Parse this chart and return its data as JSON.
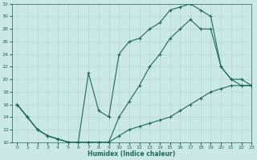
{
  "bg_color": "#cce8e4",
  "grid_color": "#b0d8d0",
  "line_color": "#1a6b5a",
  "xlabel": "Humidex (Indice chaleur)",
  "xlim": [
    -0.5,
    23
  ],
  "ylim": [
    10,
    32
  ],
  "line1_x": [
    0,
    1,
    2,
    3,
    4,
    5,
    6,
    7,
    8,
    9,
    10,
    11,
    12,
    13,
    14,
    15,
    16,
    17,
    18,
    19,
    20,
    21,
    22,
    23
  ],
  "line1_y": [
    16,
    14,
    12,
    11,
    10.5,
    10,
    10,
    10,
    10,
    10,
    14,
    16.5,
    19,
    22,
    24,
    26.5,
    28,
    29.5,
    28,
    28,
    22,
    20,
    19,
    19
  ],
  "line2_x": [
    0,
    1,
    2,
    3,
    4,
    5,
    6,
    7,
    8,
    9,
    10,
    11,
    12,
    13,
    14,
    15,
    16,
    17,
    18,
    19,
    20,
    21,
    22,
    23
  ],
  "line2_y": [
    16,
    14,
    12,
    11,
    10.5,
    10,
    10,
    21,
    15,
    14,
    24,
    26,
    26.5,
    28,
    29,
    31,
    31.5,
    32,
    31,
    30,
    22,
    20,
    20,
    19
  ],
  "line3_x": [
    0,
    1,
    2,
    3,
    4,
    5,
    6,
    7,
    8,
    9,
    10,
    11,
    12,
    13,
    14,
    15,
    16,
    17,
    18,
    19,
    20,
    21,
    22,
    23
  ],
  "line3_y": [
    16,
    14,
    12,
    11,
    10.5,
    10,
    10,
    10,
    10,
    10,
    11,
    12,
    12.5,
    13,
    13.5,
    14,
    15,
    16,
    17,
    18,
    18.5,
    19,
    19,
    19
  ]
}
